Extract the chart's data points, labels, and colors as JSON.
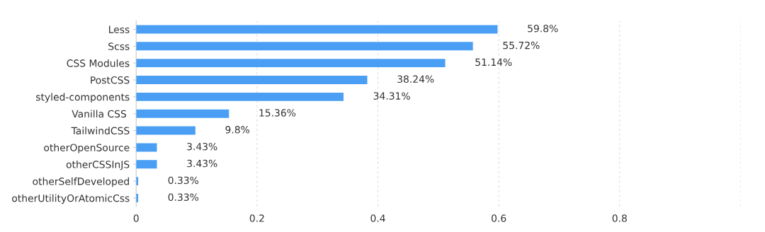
{
  "chart_data": {
    "type": "bar",
    "orientation": "horizontal",
    "categories": [
      "Less",
      "Scss",
      "CSS Modules",
      "PostCSS",
      "styled-components",
      "Vanilla CSS ",
      "TailwindCSS",
      "otherOpenSource",
      "otherCSSInJS",
      "otherSelfDeveloped",
      "otherUtilityOrAtomicCss"
    ],
    "values": [
      0.598,
      0.5572,
      0.5114,
      0.3824,
      0.3431,
      0.1536,
      0.098,
      0.0343,
      0.0343,
      0.0033,
      0.0033
    ],
    "value_labels": [
      "59.8%",
      "55.72%",
      "51.14%",
      "38.24%",
      "34.31%",
      "15.36%",
      "9.8%",
      "3.43%",
      "3.43%",
      "0.33%",
      "0.33%"
    ],
    "color": "#4a9ff5",
    "xlim": [
      0,
      1
    ],
    "xticks": [
      0,
      0.2,
      0.4,
      0.6,
      0.8,
      {
        "value": 1,
        "label": null
      }
    ],
    "grid": "x",
    "legend": false
  }
}
